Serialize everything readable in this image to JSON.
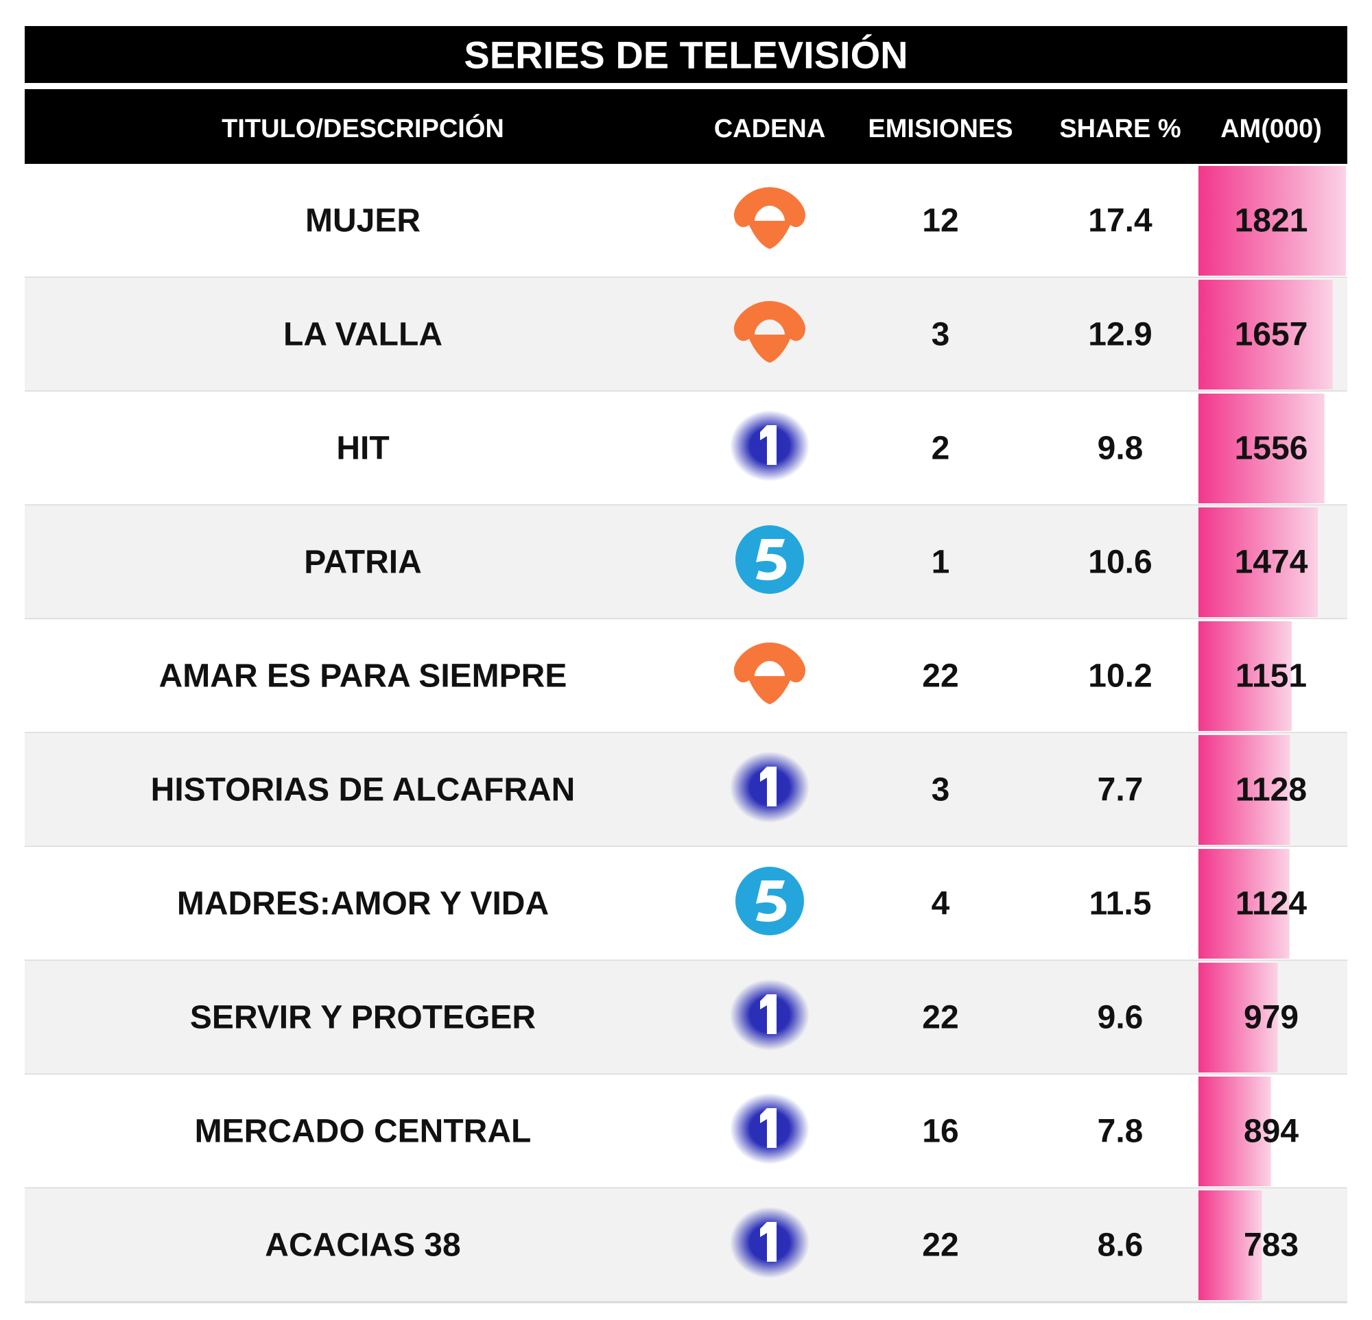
{
  "title": "SERIES DE TELEVISIÓN",
  "table": {
    "header": [
      "TITULO/DESCRIPCIÓN",
      "CADENA",
      "EMISIONES",
      "SHARE %",
      "AM(000)"
    ],
    "rows": [
      [
        "MUJER",
        null,
        12,
        17.4,
        1821
      ],
      [
        "LA VALLA",
        null,
        3,
        12.9,
        1657
      ],
      [
        "HIT",
        null,
        2,
        9.8,
        1556
      ],
      [
        "PATRIA",
        null,
        1,
        10.6,
        1474
      ],
      [
        "AMAR ES PARA SIEMPRE",
        null,
        22,
        10.2,
        1151
      ],
      [
        "HISTORIAS DE ALCAFRAN",
        null,
        3,
        7.7,
        1128
      ],
      [
        "MADRES:AMOR Y VIDA",
        null,
        4,
        11.5,
        1124
      ],
      [
        "SERVIR Y PROTEGER",
        null,
        22,
        9.6,
        979
      ],
      [
        "MERCADO CENTRAL",
        null,
        16,
        7.8,
        894
      ],
      [
        "ACACIAS 38",
        null,
        22,
        8.6,
        783
      ]
    ]
  }
}
